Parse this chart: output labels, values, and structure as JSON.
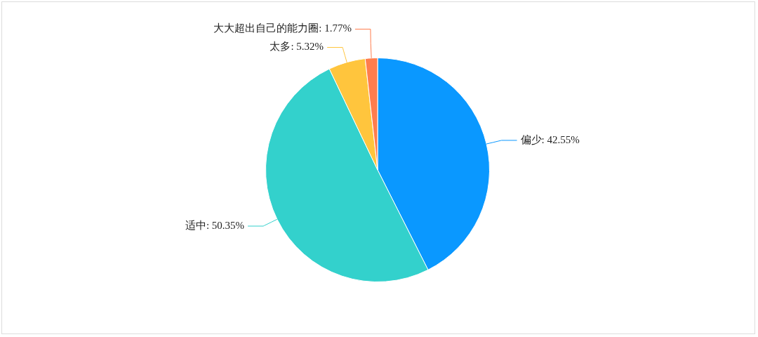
{
  "chart_data": {
    "type": "pie",
    "categories": [
      "偏少",
      "适中",
      "太多",
      "大大超出自己的能力圈"
    ],
    "values": [
      42.55,
      50.35,
      5.32,
      1.77
    ],
    "value_labels": [
      "42.55%",
      "50.35%",
      "5.32%",
      "1.77%"
    ],
    "colors": [
      "#0a98ff",
      "#33d1cc",
      "#ffc53d",
      "#ff7d4d"
    ],
    "legend": false
  }
}
